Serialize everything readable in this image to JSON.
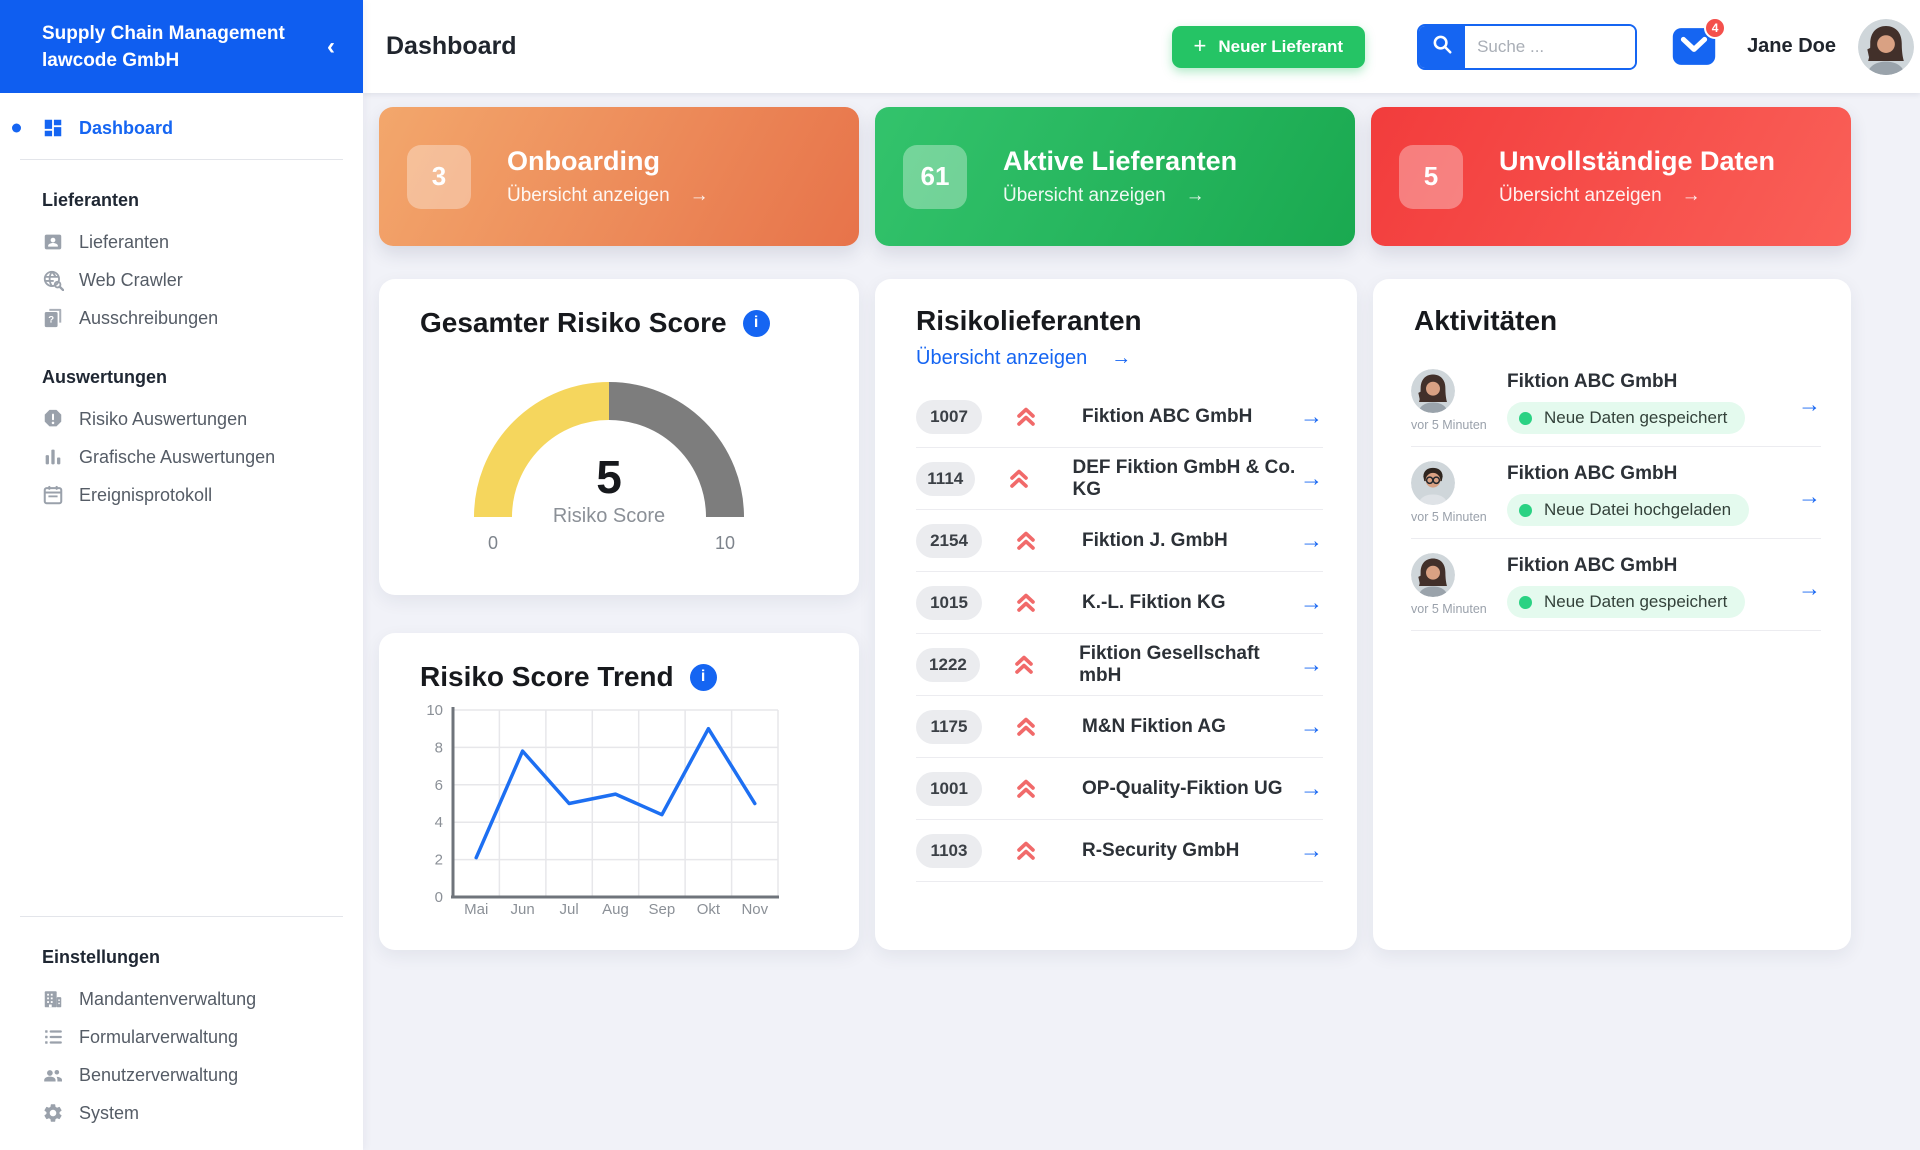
{
  "app": {
    "title_line1": "Supply Chain Management",
    "title_line2": "lawcode GmbH"
  },
  "colors": {
    "accent_blue": "#1565f2",
    "sidebar_header_blue": "#0f5ef0",
    "button_green": "#25c465",
    "risk_chevron_red": "#f16a6a",
    "badge_red": "#f4504c",
    "activity_pill_green_bg": "#e4faee",
    "activity_dot_green": "#2ad283",
    "page_background": "#f1f2f8"
  },
  "topbar": {
    "page_title": "Dashboard",
    "new_supplier_button": "Neuer Lieferant",
    "search_placeholder": "Suche ...",
    "search_value": "",
    "mail_badge": "4",
    "user_name": "Jane Doe"
  },
  "sidebar": {
    "main_item": {
      "label": "Dashboard",
      "icon": "dashboard-grid-icon"
    },
    "sections": [
      {
        "label": "Lieferanten",
        "items": [
          {
            "label": "Lieferanten",
            "icon": "contact-badge-icon"
          },
          {
            "label": "Web Crawler",
            "icon": "globe-search-icon"
          },
          {
            "label": "Ausschreibungen",
            "icon": "document-question-icon"
          }
        ]
      },
      {
        "label": "Auswertungen",
        "items": [
          {
            "label": "Risiko Auswertungen",
            "icon": "alert-octagon-icon"
          },
          {
            "label": "Grafische Auswertungen",
            "icon": "bar-chart-icon"
          },
          {
            "label": "Ereignisprotokoll",
            "icon": "calendar-icon"
          }
        ]
      },
      {
        "label": "Einstellungen",
        "items": [
          {
            "label": "Mandantenverwaltung",
            "icon": "building-icon"
          },
          {
            "label": "Formularverwaltung",
            "icon": "list-icon"
          },
          {
            "label": "Benutzerverwaltung",
            "icon": "users-icon"
          },
          {
            "label": "System",
            "icon": "gear-icon"
          }
        ]
      }
    ]
  },
  "stat_cards": [
    {
      "value": "3",
      "title": "Onboarding",
      "link": "Übersicht anzeigen",
      "color_from": "#f3a76c",
      "color_to": "#e7734a"
    },
    {
      "value": "61",
      "title": "Aktive Lieferanten",
      "link": "Übersicht anzeigen",
      "color_from": "#33c36c",
      "color_to": "#1aa950"
    },
    {
      "value": "5",
      "title": "Unvollständige Daten",
      "link": "Übersicht anzeigen",
      "color_from": "#f23c3c",
      "color_to": "#fa6058"
    }
  ],
  "chart_data": [
    {
      "type": "gauge",
      "title": "Gesamter Risiko Score",
      "value": 5,
      "min": 0,
      "max": 10,
      "center_label": "Risiko Score",
      "segments": [
        {
          "from": 0,
          "to": 5,
          "color": "#f5d65d"
        },
        {
          "from": 5,
          "to": 10,
          "color": "#7d7d7d"
        }
      ]
    },
    {
      "type": "line",
      "title": "Risiko Score Trend",
      "categories": [
        "Mai",
        "Jun",
        "Jul",
        "Aug",
        "Sep",
        "Okt",
        "Nov"
      ],
      "values": [
        2.1,
        7.8,
        5.0,
        5.5,
        4.4,
        9.0,
        5.0
      ],
      "ylim": [
        0,
        10
      ],
      "yticks": [
        0,
        2,
        4,
        6,
        8,
        10
      ],
      "line_color": "#1d6ff2",
      "grid": true,
      "legend": "none"
    }
  ],
  "risk_suppliers": {
    "title": "Risikolieferanten",
    "link": "Übersicht anzeigen",
    "rows": [
      {
        "id": "1007",
        "name": "Fiktion ABC GmbH"
      },
      {
        "id": "1114",
        "name": "DEF Fiktion GmbH & Co. KG"
      },
      {
        "id": "2154",
        "name": "Fiktion J. GmbH"
      },
      {
        "id": "1015",
        "name": "K.-L. Fiktion KG"
      },
      {
        "id": "1222",
        "name": "Fiktion Gesellschaft mbH"
      },
      {
        "id": "1175",
        "name": "M&N Fiktion AG"
      },
      {
        "id": "1001",
        "name": "OP-Quality-Fiktion UG"
      },
      {
        "id": "1103",
        "name": "R-Security GmbH"
      }
    ]
  },
  "activities": {
    "title": "Aktivitäten",
    "rows": [
      {
        "company": "Fiktion ABC GmbH",
        "status": "Neue Daten gespeichert",
        "time": "vor 5 Minuten",
        "avatar": "woman"
      },
      {
        "company": "Fiktion ABC GmbH",
        "status": "Neue Datei hochgeladen",
        "time": "vor 5 Minuten",
        "avatar": "man"
      },
      {
        "company": "Fiktion ABC GmbH",
        "status": "Neue Daten gespeichert",
        "time": "vor 5 Minuten",
        "avatar": "woman"
      }
    ]
  }
}
